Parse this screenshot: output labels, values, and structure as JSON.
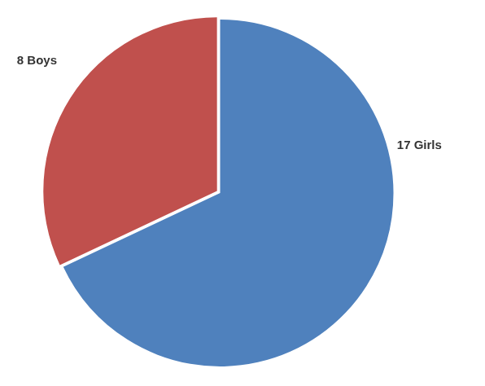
{
  "chart_data": {
    "type": "pie",
    "categories": [
      "17 Girls",
      "8 Boys"
    ],
    "values": [
      17,
      8
    ],
    "colors": [
      "#4f81bd",
      "#c0504d"
    ],
    "legend": false
  }
}
